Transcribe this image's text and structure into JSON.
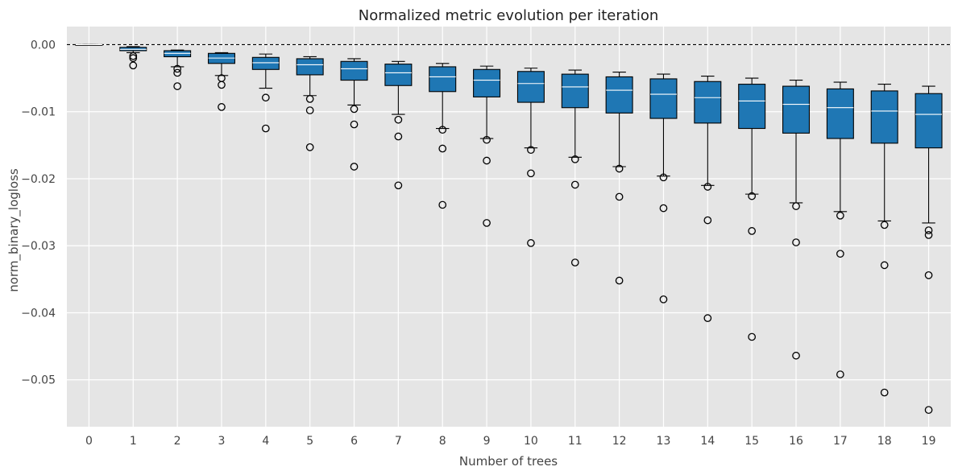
{
  "chart_data": {
    "type": "box",
    "title": "Normalized metric evolution per iteration",
    "xlabel": "Number of trees",
    "ylabel": "norm_binary_logloss",
    "ylim": [
      -0.057,
      0.0027
    ],
    "xlim": [
      -0.5,
      19.5
    ],
    "yticks": [
      0.0,
      -0.01,
      -0.02,
      -0.03,
      -0.04,
      -0.05
    ],
    "ytick_labels": [
      "0.00",
      "−0.01",
      "−0.02",
      "−0.03",
      "−0.04",
      "−0.05"
    ],
    "categories": [
      "0",
      "1",
      "2",
      "3",
      "4",
      "5",
      "6",
      "7",
      "8",
      "9",
      "10",
      "11",
      "12",
      "13",
      "14",
      "15",
      "16",
      "17",
      "18",
      "19"
    ],
    "grid": true,
    "reference_line": 0.0,
    "colors": {
      "box_fill": "#1f77b4",
      "median": "#ffffff",
      "edge": "#000000",
      "background": "#e5e5e5",
      "grid": "#ffffff",
      "reference_line": "#000000"
    },
    "boxes": [
      {
        "x": "0",
        "whisker_low": 0.0,
        "q1": 0.0,
        "median": 0.0,
        "q3": 0.0,
        "whisker_high": 0.0,
        "fliers": []
      },
      {
        "x": "1",
        "whisker_low": -0.0012,
        "q1": -0.0009,
        "median": -0.0007,
        "q3": -0.0004,
        "whisker_high": -0.0003,
        "fliers": [
          -0.0017,
          -0.002,
          -0.0031
        ]
      },
      {
        "x": "2",
        "whisker_low": -0.0033,
        "q1": -0.0018,
        "median": -0.0013,
        "q3": -0.0009,
        "whisker_high": -0.0008,
        "fliers": [
          -0.0036,
          -0.0042,
          -0.0062
        ]
      },
      {
        "x": "3",
        "whisker_low": -0.0046,
        "q1": -0.0028,
        "median": -0.002,
        "q3": -0.0013,
        "whisker_high": -0.0012,
        "fliers": [
          -0.005,
          -0.006,
          -0.0093
        ]
      },
      {
        "x": "4",
        "whisker_low": -0.0065,
        "q1": -0.0037,
        "median": -0.0027,
        "q3": -0.0019,
        "whisker_high": -0.0014,
        "fliers": [
          -0.0079,
          -0.0125
        ]
      },
      {
        "x": "5",
        "whisker_low": -0.0076,
        "q1": -0.0045,
        "median": -0.003,
        "q3": -0.0021,
        "whisker_high": -0.0018,
        "fliers": [
          -0.0081,
          -0.0098,
          -0.0153
        ]
      },
      {
        "x": "6",
        "whisker_low": -0.009,
        "q1": -0.0053,
        "median": -0.0036,
        "q3": -0.0025,
        "whisker_high": -0.0021,
        "fliers": [
          -0.0096,
          -0.0119,
          -0.0182
        ]
      },
      {
        "x": "7",
        "whisker_low": -0.0104,
        "q1": -0.0061,
        "median": -0.0042,
        "q3": -0.0029,
        "whisker_high": -0.0025,
        "fliers": [
          -0.0112,
          -0.0137,
          -0.021
        ]
      },
      {
        "x": "8",
        "whisker_low": -0.0125,
        "q1": -0.007,
        "median": -0.0048,
        "q3": -0.0033,
        "whisker_high": -0.0028,
        "fliers": [
          -0.0127,
          -0.0155,
          -0.0239
        ]
      },
      {
        "x": "9",
        "whisker_low": -0.014,
        "q1": -0.0078,
        "median": -0.0053,
        "q3": -0.0037,
        "whisker_high": -0.0032,
        "fliers": [
          -0.0142,
          -0.0173,
          -0.0266
        ]
      },
      {
        "x": "10",
        "whisker_low": -0.0154,
        "q1": -0.0086,
        "median": -0.0058,
        "q3": -0.004,
        "whisker_high": -0.0035,
        "fliers": [
          -0.0157,
          -0.0192,
          -0.0296
        ]
      },
      {
        "x": "11",
        "whisker_low": -0.0168,
        "q1": -0.0094,
        "median": -0.0063,
        "q3": -0.0044,
        "whisker_high": -0.0038,
        "fliers": [
          -0.0171,
          -0.0209,
          -0.0325
        ]
      },
      {
        "x": "12",
        "whisker_low": -0.0182,
        "q1": -0.0102,
        "median": -0.0068,
        "q3": -0.0048,
        "whisker_high": -0.0041,
        "fliers": [
          -0.0185,
          -0.0227,
          -0.0352
        ]
      },
      {
        "x": "13",
        "whisker_low": -0.0196,
        "q1": -0.011,
        "median": -0.0074,
        "q3": -0.0051,
        "whisker_high": -0.0044,
        "fliers": [
          -0.0198,
          -0.0244,
          -0.038
        ]
      },
      {
        "x": "14",
        "whisker_low": -0.021,
        "q1": -0.0117,
        "median": -0.0079,
        "q3": -0.0055,
        "whisker_high": -0.0047,
        "fliers": [
          -0.0212,
          -0.0262,
          -0.0408
        ]
      },
      {
        "x": "15",
        "whisker_low": -0.0223,
        "q1": -0.0125,
        "median": -0.0084,
        "q3": -0.0059,
        "whisker_high": -0.005,
        "fliers": [
          -0.0226,
          -0.0278,
          -0.0436
        ]
      },
      {
        "x": "16",
        "whisker_low": -0.0236,
        "q1": -0.0132,
        "median": -0.0089,
        "q3": -0.0062,
        "whisker_high": -0.0053,
        "fliers": [
          -0.0241,
          -0.0295,
          -0.0464
        ]
      },
      {
        "x": "17",
        "whisker_low": -0.0249,
        "q1": -0.014,
        "median": -0.0094,
        "q3": -0.0066,
        "whisker_high": -0.0056,
        "fliers": [
          -0.0255,
          -0.0312,
          -0.0492
        ]
      },
      {
        "x": "18",
        "whisker_low": -0.0263,
        "q1": -0.0147,
        "median": -0.0099,
        "q3": -0.0069,
        "whisker_high": -0.0059,
        "fliers": [
          -0.0269,
          -0.0329,
          -0.0519
        ]
      },
      {
        "x": "19",
        "whisker_low": -0.0266,
        "q1": -0.0154,
        "median": -0.0104,
        "q3": -0.0073,
        "whisker_high": -0.0062,
        "fliers": [
          -0.0277,
          -0.0284,
          -0.0344,
          -0.0545
        ]
      }
    ]
  }
}
